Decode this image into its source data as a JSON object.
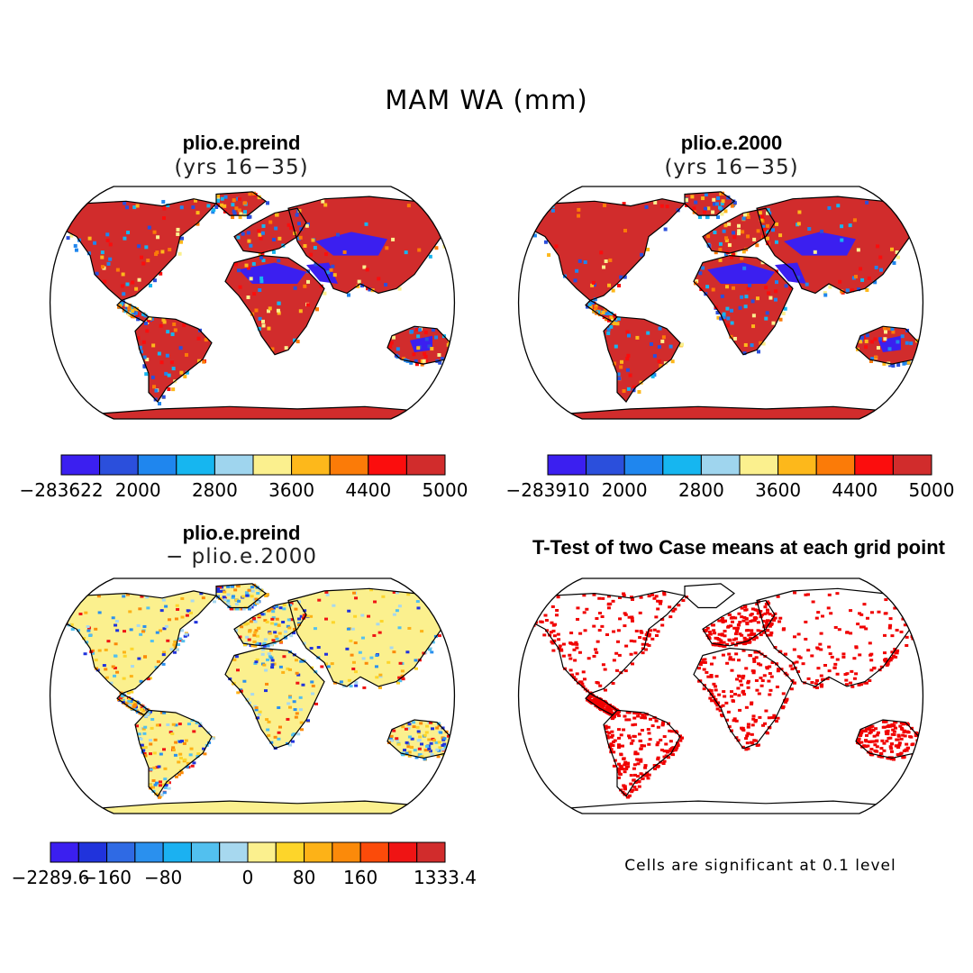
{
  "title": "MAM WA (mm)",
  "panels": [
    {
      "id": "preind",
      "title": "plio.e.preind",
      "subtitle": "(yrs 16−35)",
      "colorbar": {
        "colors": [
          "#3b1ff0",
          "#2b4fdc",
          "#1f86ee",
          "#16b6f0",
          "#9fd5ee",
          "#fbf08e",
          "#fdb81b",
          "#fb7b08",
          "#fb0d0d",
          "#d12c2c"
        ],
        "labels": [
          "−283622",
          "2000",
          "2800",
          "3600",
          "4400",
          "5000"
        ]
      }
    },
    {
      "id": "y2000",
      "title": "plio.e.2000",
      "subtitle": "(yrs 16−35)",
      "colorbar": {
        "colors": [
          "#3b1ff0",
          "#2b4fdc",
          "#1f86ee",
          "#16b6f0",
          "#9fd5ee",
          "#fbf08e",
          "#fdb81b",
          "#fb7b08",
          "#fb0d0d",
          "#d12c2c"
        ],
        "labels": [
          "−283910",
          "2000",
          "2800",
          "3600",
          "4400",
          "5000"
        ]
      }
    },
    {
      "id": "diff",
      "title": "plio.e.preind",
      "subtitle": "− plio.e.2000",
      "colorbar": {
        "colors": [
          "#3b1ff0",
          "#2033dc",
          "#2f6ae4",
          "#2a90ee",
          "#1bb1f1",
          "#52c0ef",
          "#a7d8ef",
          "#fbf08e",
          "#fdd52a",
          "#fdb217",
          "#fb8a0a",
          "#fb4b0a",
          "#ef1414",
          "#d12c2c"
        ],
        "labels": [
          "−2289.6",
          "−160",
          "−80",
          "0",
          "80",
          "160",
          "1333.4"
        ]
      }
    },
    {
      "id": "ttest",
      "title": "T-Test of two Case means at each grid point",
      "note": "Cells are significant at 0.1 level",
      "sig_color": "#f00000"
    }
  ]
}
